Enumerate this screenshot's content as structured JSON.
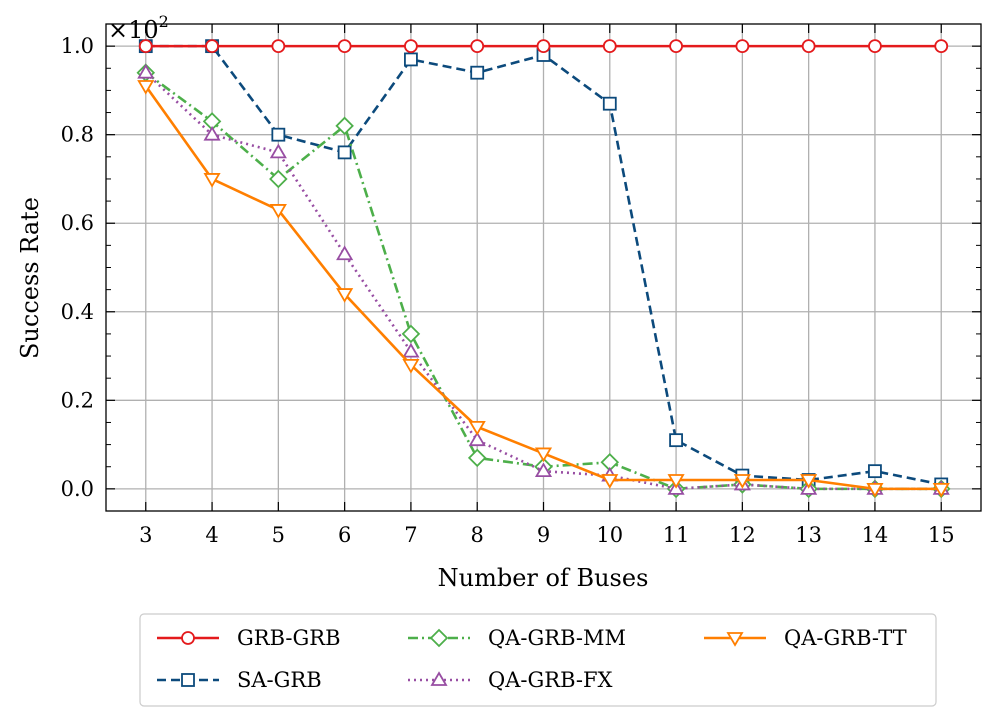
{
  "chart_data": {
    "type": "line",
    "title": "",
    "xlabel": "Number of Buses",
    "ylabel": "Success Rate",
    "scale_label": "×10",
    "scale_exponent": "2",
    "x": [
      3,
      4,
      5,
      6,
      7,
      8,
      9,
      10,
      11,
      12,
      13,
      14,
      15
    ],
    "xlim": [
      2.4,
      15.6
    ],
    "ylim": [
      -0.05,
      1.05
    ],
    "xticks": [
      "3",
      "4",
      "5",
      "6",
      "7",
      "8",
      "9",
      "10",
      "11",
      "12",
      "13",
      "14",
      "15"
    ],
    "yticks": [
      "0.0",
      "0.2",
      "0.4",
      "0.6",
      "0.8",
      "1.0"
    ],
    "ytick_values": [
      0.0,
      0.2,
      0.4,
      0.6,
      0.8,
      1.0
    ],
    "grid": true,
    "legend_position": "below",
    "series": [
      {
        "name": "GRB-GRB",
        "color": "#e41a1c",
        "marker": "circle",
        "dash": "solid",
        "values": [
          1.0,
          1.0,
          1.0,
          1.0,
          1.0,
          1.0,
          1.0,
          1.0,
          1.0,
          1.0,
          1.0,
          1.0,
          1.0
        ]
      },
      {
        "name": "SA-GRB",
        "color": "#0c4a7c",
        "marker": "square",
        "dash": "dashed",
        "values": [
          1.0,
          1.0,
          0.8,
          0.76,
          0.97,
          0.94,
          0.98,
          0.87,
          0.11,
          0.03,
          0.02,
          0.04,
          0.01
        ]
      },
      {
        "name": "QA-GRB-MM",
        "color": "#4daf4a",
        "marker": "diamond",
        "dash": "dashdot",
        "values": [
          0.94,
          0.83,
          0.7,
          0.82,
          0.35,
          0.07,
          0.05,
          0.06,
          0.0,
          0.01,
          0.0,
          0.0,
          0.0
        ]
      },
      {
        "name": "QA-GRB-FX",
        "color": "#984ea3",
        "marker": "triangle-up",
        "dash": "dotted",
        "values": [
          0.94,
          0.8,
          0.76,
          0.53,
          0.31,
          0.11,
          0.04,
          0.03,
          0.0,
          0.01,
          0.0,
          0.0,
          0.0
        ]
      },
      {
        "name": "QA-GRB-TT",
        "color": "#ff7f00",
        "marker": "triangle-down",
        "dash": "solid",
        "values": [
          0.91,
          0.7,
          0.63,
          0.44,
          0.28,
          0.14,
          0.08,
          0.02,
          0.02,
          0.02,
          0.02,
          0.0,
          0.0
        ]
      }
    ],
    "legend_entries": [
      "GRB-GRB",
      "QA-GRB-MM",
      "QA-GRB-TT",
      "SA-GRB",
      "QA-GRB-FX"
    ]
  }
}
